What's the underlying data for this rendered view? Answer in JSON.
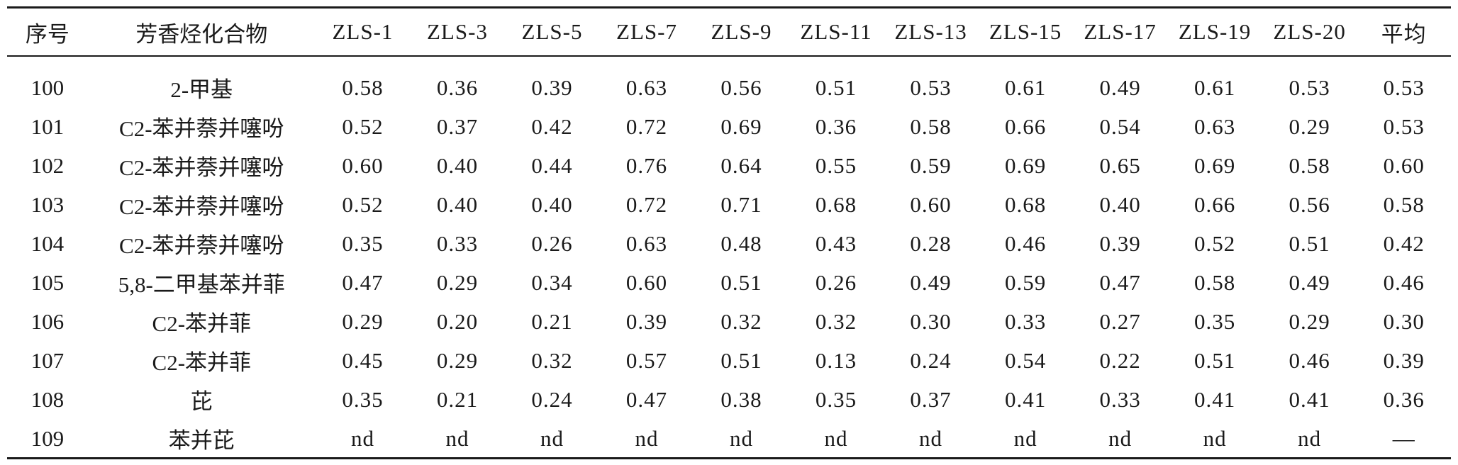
{
  "table": {
    "headers": [
      "序号",
      "芳香烃化合物",
      "ZLS-1",
      "ZLS-3",
      "ZLS-5",
      "ZLS-7",
      "ZLS-9",
      "ZLS-11",
      "ZLS-13",
      "ZLS-15",
      "ZLS-17",
      "ZLS-19",
      "ZLS-20",
      "平均"
    ],
    "rows": [
      [
        "100",
        "2-甲基",
        "0.58",
        "0.36",
        "0.39",
        "0.63",
        "0.56",
        "0.51",
        "0.53",
        "0.61",
        "0.49",
        "0.61",
        "0.53",
        "0.53"
      ],
      [
        "101",
        "C2-苯并萘并噻吩",
        "0.52",
        "0.37",
        "0.42",
        "0.72",
        "0.69",
        "0.36",
        "0.58",
        "0.66",
        "0.54",
        "0.63",
        "0.29",
        "0.53"
      ],
      [
        "102",
        "C2-苯并萘并噻吩",
        "0.60",
        "0.40",
        "0.44",
        "0.76",
        "0.64",
        "0.55",
        "0.59",
        "0.69",
        "0.65",
        "0.69",
        "0.58",
        "0.60"
      ],
      [
        "103",
        "C2-苯并萘并噻吩",
        "0.52",
        "0.40",
        "0.40",
        "0.72",
        "0.71",
        "0.68",
        "0.60",
        "0.68",
        "0.40",
        "0.66",
        "0.56",
        "0.58"
      ],
      [
        "104",
        "C2-苯并萘并噻吩",
        "0.35",
        "0.33",
        "0.26",
        "0.63",
        "0.48",
        "0.43",
        "0.28",
        "0.46",
        "0.39",
        "0.52",
        "0.51",
        "0.42"
      ],
      [
        "105",
        "5,8-二甲基苯并菲",
        "0.47",
        "0.29",
        "0.34",
        "0.60",
        "0.51",
        "0.26",
        "0.49",
        "0.59",
        "0.47",
        "0.58",
        "0.49",
        "0.46"
      ],
      [
        "106",
        "C2-苯并菲",
        "0.29",
        "0.20",
        "0.21",
        "0.39",
        "0.32",
        "0.32",
        "0.30",
        "0.33",
        "0.27",
        "0.35",
        "0.29",
        "0.30"
      ],
      [
        "107",
        "C2-苯并菲",
        "0.45",
        "0.29",
        "0.32",
        "0.57",
        "0.51",
        "0.13",
        "0.24",
        "0.54",
        "0.22",
        "0.51",
        "0.46",
        "0.39"
      ],
      [
        "108",
        "芘",
        "0.35",
        "0.21",
        "0.24",
        "0.47",
        "0.38",
        "0.35",
        "0.37",
        "0.41",
        "0.33",
        "0.41",
        "0.41",
        "0.36"
      ],
      [
        "109",
        "苯并芘",
        "nd",
        "nd",
        "nd",
        "nd",
        "nd",
        "nd",
        "nd",
        "nd",
        "nd",
        "nd",
        "nd",
        "—"
      ]
    ]
  }
}
